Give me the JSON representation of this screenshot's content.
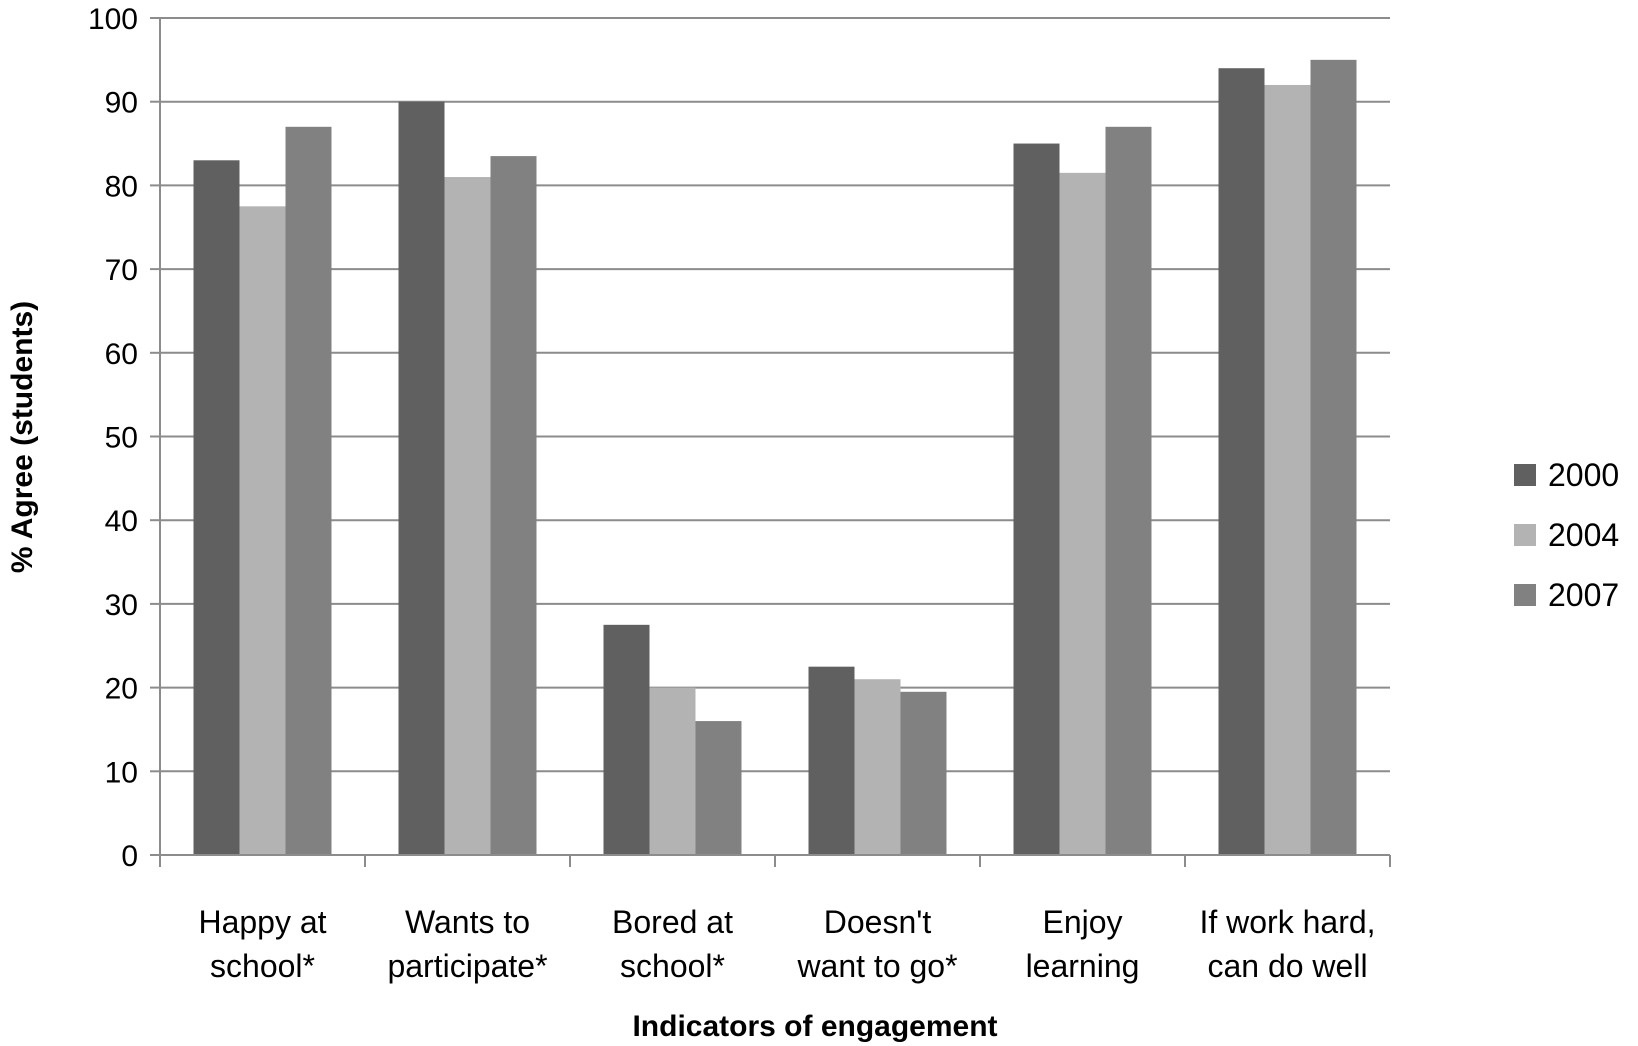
{
  "chart_data": {
    "type": "bar",
    "title": "",
    "xlabel": "Indicators of engagement",
    "ylabel": "% Agree (students)",
    "ylim": [
      0,
      100
    ],
    "yticks": [
      0,
      10,
      20,
      30,
      40,
      50,
      60,
      70,
      80,
      90,
      100
    ],
    "grid": true,
    "legend_position": "right",
    "categories": [
      [
        "Happy at",
        "school*"
      ],
      [
        "Wants to",
        "participate*"
      ],
      [
        "Bored at",
        "school*"
      ],
      [
        "Doesn't",
        "want to go*"
      ],
      [
        "Enjoy",
        "learning"
      ],
      [
        "If work hard,",
        "can do well"
      ]
    ],
    "series": [
      {
        "name": "2000",
        "color": "#606060",
        "values": [
          83,
          90,
          27.5,
          22.5,
          85,
          94
        ]
      },
      {
        "name": "2004",
        "color": "#b3b3b3",
        "values": [
          77.5,
          81,
          20,
          21,
          81.5,
          92
        ]
      },
      {
        "name": "2007",
        "color": "#818181",
        "values": [
          87,
          83.5,
          16,
          19.5,
          87,
          95
        ]
      }
    ]
  }
}
